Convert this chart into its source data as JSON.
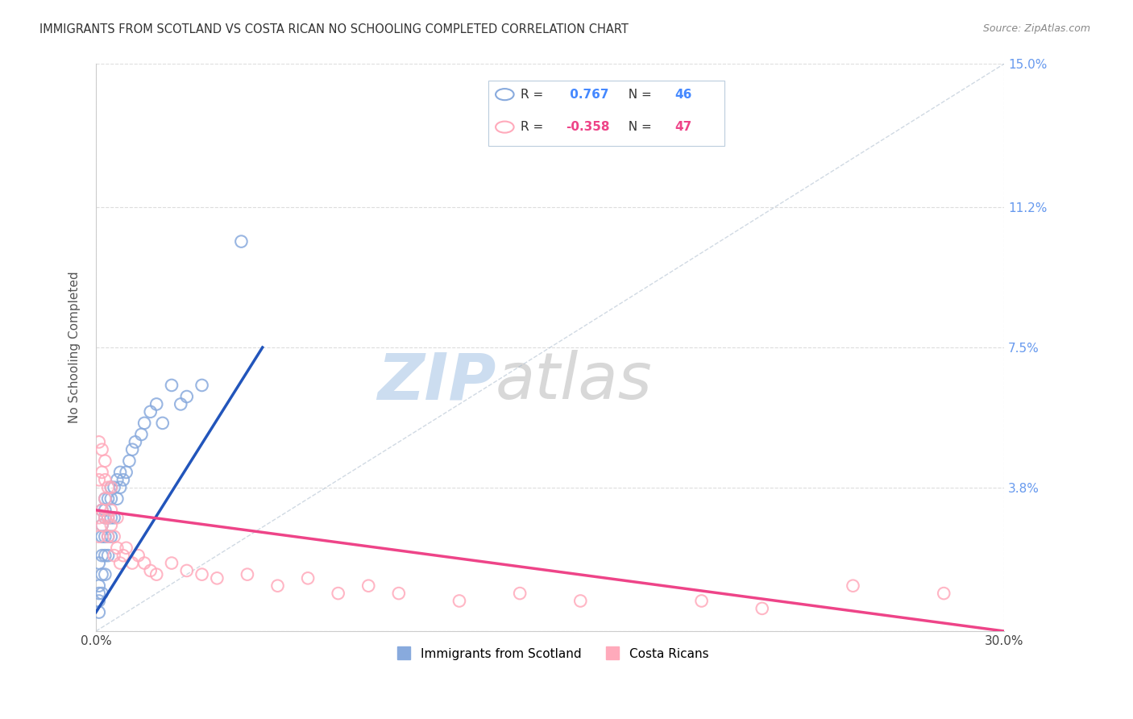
{
  "title": "IMMIGRANTS FROM SCOTLAND VS COSTA RICAN NO SCHOOLING COMPLETED CORRELATION CHART",
  "source": "Source: ZipAtlas.com",
  "ylabel": "No Schooling Completed",
  "x_min": 0.0,
  "x_max": 0.3,
  "y_min": 0.0,
  "y_max": 0.15,
  "x_ticks": [
    0.0,
    0.3
  ],
  "x_tick_labels": [
    "0.0%",
    "30.0%"
  ],
  "y_ticks": [
    0.0,
    0.038,
    0.075,
    0.112,
    0.15
  ],
  "y_tick_labels": [
    "",
    "3.8%",
    "7.5%",
    "11.2%",
    "15.0%"
  ],
  "scotland_R": 0.767,
  "scotland_N": 46,
  "costarica_R": -0.358,
  "costarica_N": 47,
  "scotland_dot_color": "#88aadd",
  "costarica_dot_color": "#ffaabb",
  "scotland_line_color": "#2255bb",
  "costarica_line_color": "#ee4488",
  "background_color": "#ffffff",
  "grid_color": "#dddddd",
  "title_color": "#333333",
  "right_tick_color": "#6699ee",
  "watermark_color": "#cce0f0",
  "legend_label_scotland": "Immigrants from Scotland",
  "legend_label_costarica": "Costa Ricans",
  "legend_R_color": "#4488ff",
  "legend_CR_color": "#ee4488",
  "scot_x": [
    0.001,
    0.001,
    0.001,
    0.001,
    0.001,
    0.002,
    0.002,
    0.002,
    0.002,
    0.002,
    0.002,
    0.003,
    0.003,
    0.003,
    0.003,
    0.003,
    0.003,
    0.004,
    0.004,
    0.004,
    0.004,
    0.005,
    0.005,
    0.005,
    0.005,
    0.006,
    0.006,
    0.007,
    0.007,
    0.008,
    0.008,
    0.009,
    0.01,
    0.011,
    0.012,
    0.013,
    0.015,
    0.016,
    0.018,
    0.02,
    0.022,
    0.025,
    0.028,
    0.03,
    0.035,
    0.048
  ],
  "scot_y": [
    0.005,
    0.008,
    0.01,
    0.012,
    0.018,
    0.01,
    0.015,
    0.02,
    0.025,
    0.028,
    0.032,
    0.015,
    0.02,
    0.025,
    0.03,
    0.032,
    0.035,
    0.02,
    0.025,
    0.03,
    0.035,
    0.025,
    0.03,
    0.035,
    0.038,
    0.03,
    0.038,
    0.035,
    0.04,
    0.038,
    0.042,
    0.04,
    0.042,
    0.045,
    0.048,
    0.05,
    0.052,
    0.055,
    0.058,
    0.06,
    0.055,
    0.065,
    0.06,
    0.062,
    0.065,
    0.103
  ],
  "cr_x": [
    0.001,
    0.001,
    0.001,
    0.001,
    0.002,
    0.002,
    0.002,
    0.002,
    0.003,
    0.003,
    0.003,
    0.003,
    0.004,
    0.004,
    0.004,
    0.005,
    0.005,
    0.005,
    0.006,
    0.006,
    0.007,
    0.007,
    0.008,
    0.009,
    0.01,
    0.012,
    0.014,
    0.016,
    0.018,
    0.02,
    0.025,
    0.03,
    0.035,
    0.04,
    0.05,
    0.06,
    0.07,
    0.08,
    0.09,
    0.1,
    0.12,
    0.14,
    0.16,
    0.2,
    0.22,
    0.25,
    0.28
  ],
  "cr_y": [
    0.025,
    0.03,
    0.04,
    0.05,
    0.028,
    0.032,
    0.042,
    0.048,
    0.03,
    0.035,
    0.04,
    0.045,
    0.025,
    0.03,
    0.038,
    0.028,
    0.032,
    0.038,
    0.02,
    0.025,
    0.022,
    0.03,
    0.018,
    0.02,
    0.022,
    0.018,
    0.02,
    0.018,
    0.016,
    0.015,
    0.018,
    0.016,
    0.015,
    0.014,
    0.015,
    0.012,
    0.014,
    0.01,
    0.012,
    0.01,
    0.008,
    0.01,
    0.008,
    0.008,
    0.006,
    0.012,
    0.01
  ]
}
